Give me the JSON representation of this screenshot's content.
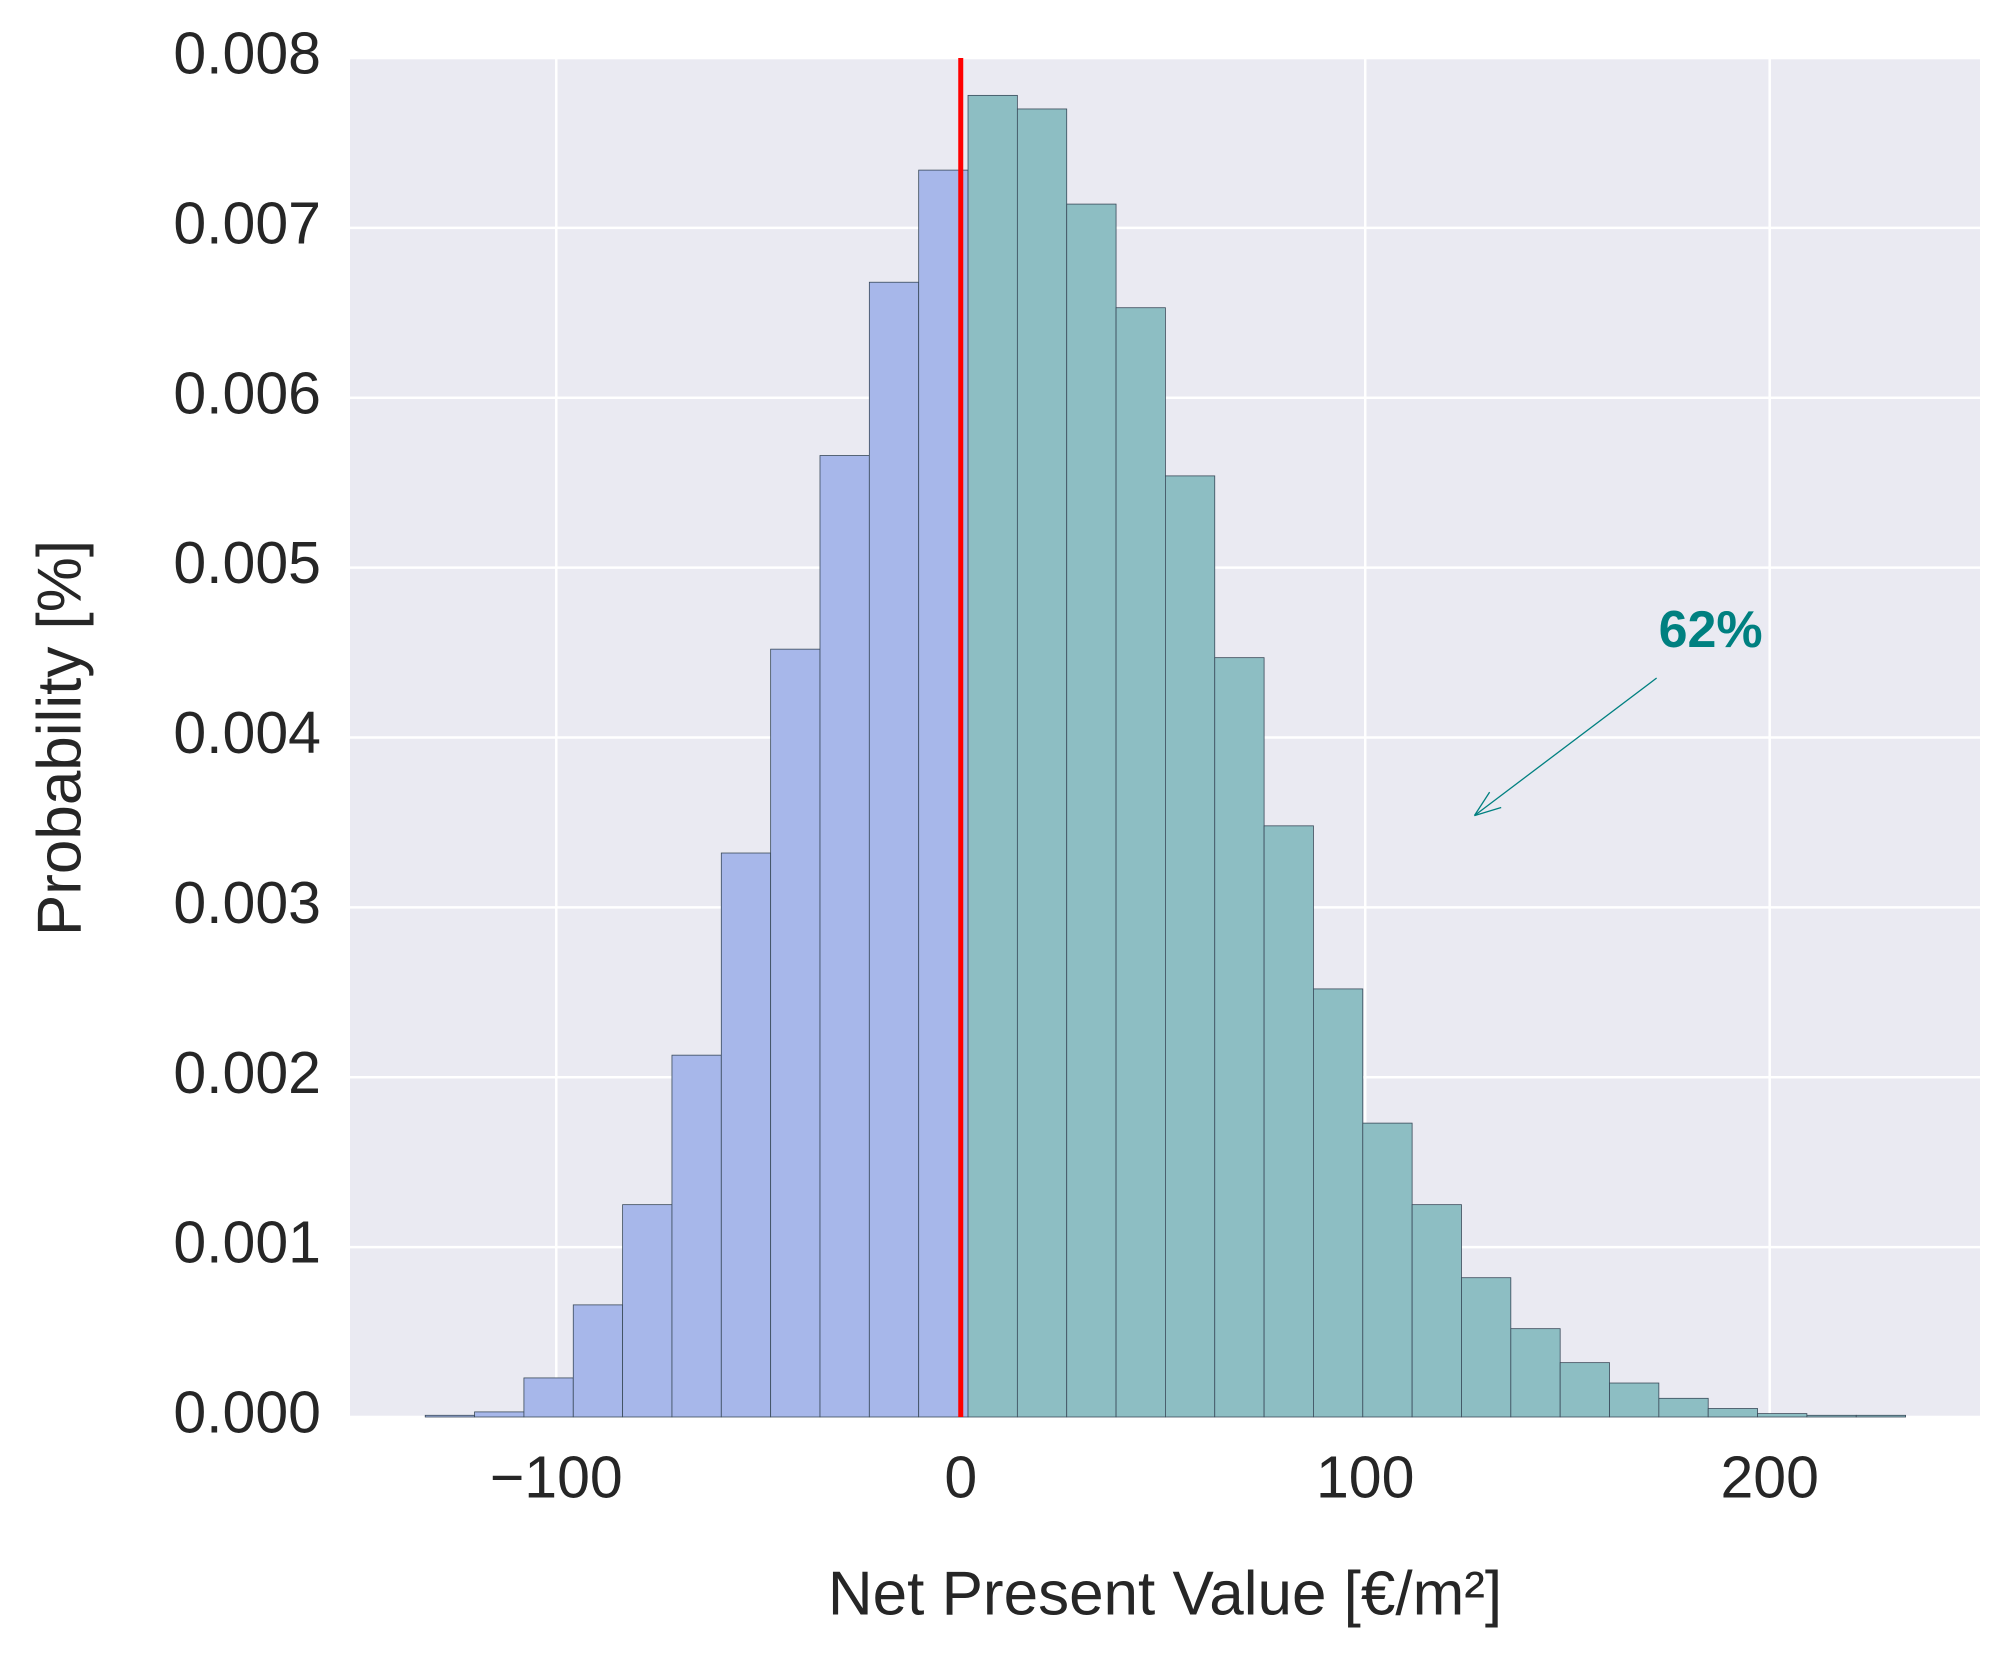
{
  "chart_data": {
    "type": "histogram",
    "xlabel": "Net Present Value [€/m²]",
    "ylabel": "Probability [%]",
    "bins": [
      -132.4,
      -120.2,
      -108.0,
      -95.8,
      -83.6,
      -71.4,
      -59.2,
      -47.0,
      -34.8,
      -22.6,
      -10.4,
      1.8,
      14.0,
      26.2,
      38.4,
      50.6,
      62.8,
      75.0,
      87.2,
      99.4,
      111.6,
      123.8,
      136.0,
      148.2,
      160.4,
      172.6,
      184.8,
      197.0,
      209.2,
      221.4,
      233.6
    ],
    "values": [
      1e-05,
      3e-05,
      0.00023,
      0.00066,
      0.00125,
      0.00213,
      0.00332,
      0.00452,
      0.00566,
      0.00668,
      0.00734,
      0.00778,
      0.0077,
      0.00714,
      0.00653,
      0.00554,
      0.00447,
      0.00348,
      0.00252,
      0.00173,
      0.00125,
      0.00082,
      0.00052,
      0.00032,
      0.0002,
      0.00011,
      5e-05,
      2e-05,
      1e-05,
      1e-05
    ],
    "negative_color": "#a7b7ea",
    "positive_color": "#8dbec3",
    "threshold": 0,
    "threshold_color": "#ff0000",
    "annotation": {
      "text": "62%",
      "color": "#008080",
      "xy": [
        127,
        0.00354
      ],
      "xytext": [
        185.4,
        0.004615
      ]
    },
    "xlim": [
      -151,
      252
    ],
    "ylim": [
      0,
      0.008
    ],
    "xticks": [
      {
        "value": -100,
        "label": "−100"
      },
      0,
      100,
      200
    ],
    "yticks": [
      {
        "value": 0,
        "label": "0.000"
      },
      0.001,
      0.002,
      0.003,
      0.004,
      0.005,
      0.006,
      0.007,
      0.008
    ],
    "grid": true
  }
}
